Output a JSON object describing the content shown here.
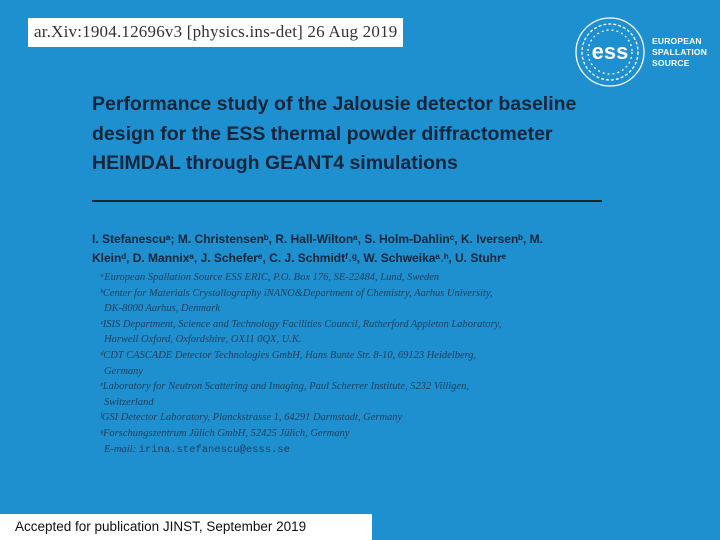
{
  "arxiv_stamp": "ar.Xiv:1904.12696v3  [physics.ins-det]  26 Aug 2019",
  "logo": {
    "mark": "ess",
    "lines": [
      "EUROPEAN",
      "SPALLATION",
      "SOURCE"
    ],
    "icon": "ess-logo-icon"
  },
  "title_lines": [
    "Performance study of the Jalousie detector baseline",
    "design for the ESS thermal powder diffractometer",
    "HEIMDAL through GEANT4 simulations"
  ],
  "authors_lines": [
    "I. Stefanescuᵃ; M. Christensenᵇ, R. Hall-Wiltonᵃ, S. Holm-Dahlinᶜ, K. Iversenᵇ, M.",
    "Kleinᵈ, D. Mannixᵃ, J. Scheferᵉ, C. J. Schmidtᶠ˒ᵍ, W. Schweikaᵃ˒ʰ, U. Stuhrᵉ"
  ],
  "affiliations": [
    "ᵃEuropean Spallation Source ESS ERIC, P.O. Box 176, SE-22484, Lund, Sweden",
    "ᵇCenter for Materials Crystallography iNANO&Department of Chemistry, Aarhus University,",
    "DK-8000 Aarhus, Denmark",
    "ᶜISIS Department, Science and Technology Facilities Council, Rutherford Appleton Laboratory,",
    "Harwell Oxford, Oxfordshire, OX11 0QX, U.K.",
    "ᵈCDT CASCADE Detector Technologies GmbH, Hans Bunte Str. 8-10, 69123 Heidelberg,",
    "Germany",
    "ᵉLaboratory for Neutron Scattering and Imaging, Paul Scherrer Institute, 5232 Villigen,",
    "Switzerland",
    "ᶠGSI Detector Laboratory, Planckstrasse 1, 64291 Darmstadt, Germany",
    "ᵍForschungszentrum Jülich GmbH, 52425 Jülich, Germany"
  ],
  "email_label": "E-mail:",
  "email_value": "irina.stefanescu@esss.se",
  "footer": "Accepted for publication JINST, September 2019"
}
